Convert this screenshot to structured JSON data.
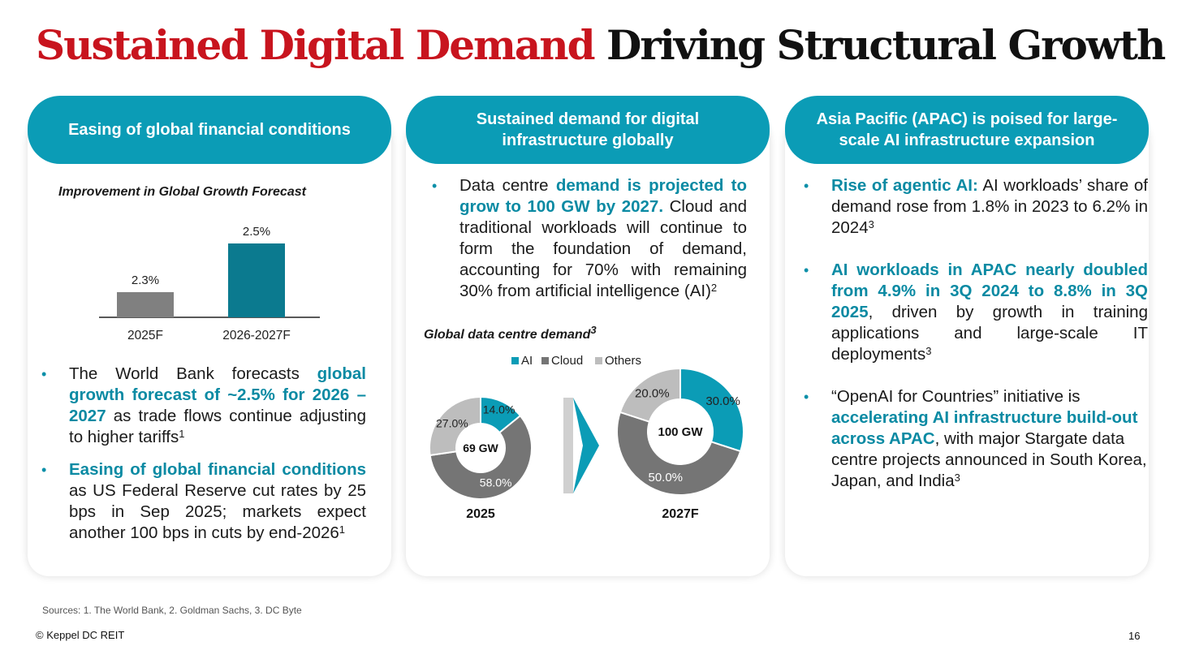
{
  "title": {
    "part1": "Sustained Digital Demand",
    "part2": "Driving Structural Growth"
  },
  "colors": {
    "accent": "#0b9cb6",
    "title_red": "#c8141e",
    "ai": "#0b9cb6",
    "cloud": "#757575",
    "others": "#bdbdbd",
    "bar_2025": "#808080",
    "bar_2026": "#0b7a8f"
  },
  "panel1": {
    "header": "Easing of global financial conditions",
    "chart_title": "Improvement in Global Growth Forecast",
    "bullets": [
      {
        "pre": "The World Bank forecasts ",
        "hl": "global growth forecast of ~2.5% for 2026 – 2027",
        "post": " as trade flows continue adjusting to higher tariffs",
        "sup": "1"
      },
      {
        "hl": "Easing of global financial conditions",
        "post": " as US Federal Reserve cut rates by 25 bps in Sep 2025; markets expect another 100 bps in cuts by end-2026",
        "sup": "1"
      }
    ]
  },
  "panel2": {
    "header": "Sustained demand for digital infrastructure globally",
    "bullet": {
      "pre": "Data centre ",
      "hl": "demand is projected to grow to 100 GW by 2027.",
      "post": " Cloud and traditional workloads will continue to form the foundation of demand, accounting for 70% with remaining 30% from artificial intelligence (AI)",
      "sup": "2"
    },
    "chart_title": "Global data centre demand",
    "chart_title_sup": "3"
  },
  "panel3": {
    "header": "Asia Pacific (APAC) is poised for large-scale AI infrastructure expansion",
    "bullets": [
      {
        "hl": "Rise of agentic AI:",
        "post": " AI workloads’ share of demand rose from 1.8% in 2023 to 6.2% in 2024",
        "sup": "3"
      },
      {
        "hl": "AI workloads in APAC nearly doubled from 4.9% in 3Q 2024 to 8.8% in 3Q 2025",
        "post": ", driven by growth in training applications and large-scale IT deployments",
        "sup": "3"
      },
      {
        "pre": "“OpenAI for Countries” initiative is ",
        "hl": "accelerating AI infrastructure build-out across APAC",
        "post": ", with major Stargate data centre projects announced in South Korea, Japan, and India",
        "sup": "3"
      }
    ]
  },
  "chart_data": [
    {
      "type": "bar",
      "title": "Improvement in Global Growth Forecast",
      "categories": [
        "2025F",
        "2026-2027F"
      ],
      "values": [
        2.3,
        2.5
      ],
      "labels": [
        "2.3%",
        "2.5%"
      ]
    },
    {
      "type": "pie",
      "title": "Global data centre demand",
      "legend": [
        "AI",
        "Cloud",
        "Others"
      ],
      "charts": [
        {
          "name": "2025",
          "center_label": "69 GW",
          "values": [
            14.0,
            58.0,
            27.0
          ],
          "labels": [
            "14.0%",
            "58.0%",
            "27.0%"
          ]
        },
        {
          "name": "2027F",
          "center_label": "100 GW",
          "values": [
            30.0,
            50.0,
            20.0
          ],
          "labels": [
            "30.0%",
            "50.0%",
            "20.0%"
          ]
        }
      ]
    }
  ],
  "footer": {
    "sources": "Sources: 1. The World Bank, 2. Goldman Sachs, 3. DC Byte",
    "copyright": "© Keppel DC REIT",
    "page": "16"
  }
}
